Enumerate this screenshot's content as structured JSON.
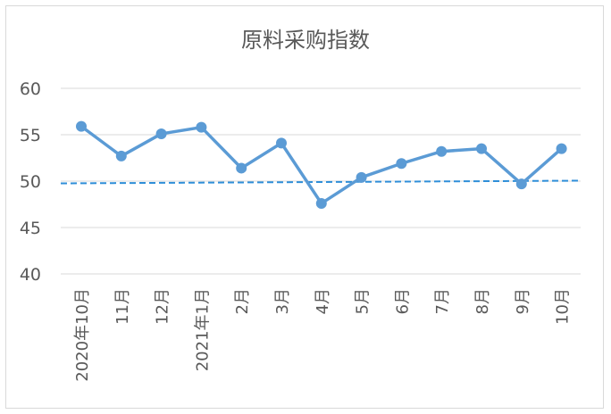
{
  "chart_data": {
    "type": "line",
    "title": "原料采购指数",
    "xlabel": "",
    "ylabel": "",
    "categories": [
      "2020年10月",
      "11月",
      "12月",
      "2021年1月",
      "2月",
      "3月",
      "4月",
      "5月",
      "6月",
      "7月",
      "8月",
      "9月",
      "10月"
    ],
    "series": [
      {
        "values": [
          55.9,
          52.7,
          55.1,
          55.8,
          51.4,
          54.1,
          47.6,
          50.4,
          51.9,
          53.2,
          53.5,
          49.7,
          53.5
        ]
      }
    ],
    "reference_line": {
      "value": 50,
      "style": "dashed"
    },
    "ylim": [
      40,
      60
    ],
    "yticks": [
      40,
      45,
      50,
      55,
      60
    ],
    "grid": true,
    "legend": "none",
    "colors": {
      "series": "#5b9bd5",
      "reference": "#2e8ed8",
      "grid": "#d9d9d9",
      "text": "#595959",
      "frame": "#d9d9d9"
    }
  }
}
